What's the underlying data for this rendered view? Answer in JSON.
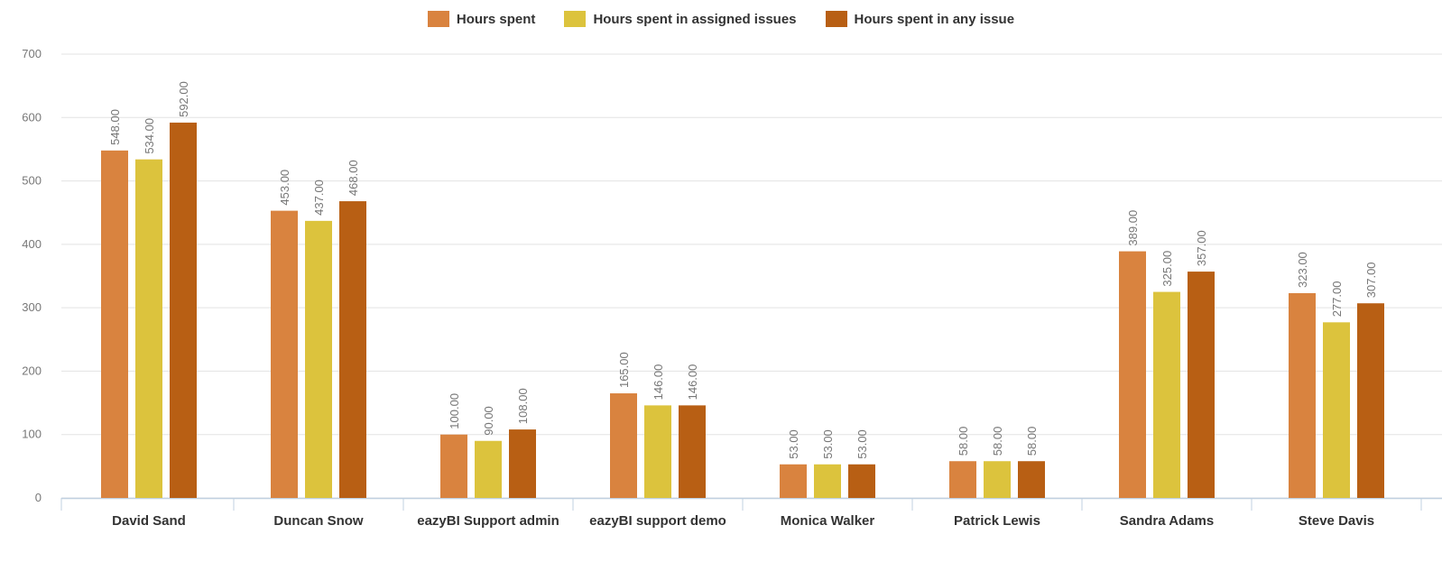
{
  "chart_data": {
    "type": "bar",
    "categories": [
      "David Sand",
      "Duncan Snow",
      "eazyBI Support admin",
      "eazyBI support demo",
      "Monica Walker",
      "Patrick Lewis",
      "Sandra Adams",
      "Steve Davis"
    ],
    "series": [
      {
        "name": "Hours spent",
        "color": "#d9833f",
        "values": [
          548,
          453,
          100,
          165,
          53,
          58,
          389,
          323
        ],
        "value_labels": [
          "548.00",
          "453.00",
          "100.00",
          "165.00",
          "53.00",
          "58.00",
          "389.00",
          "323.00"
        ]
      },
      {
        "name": "Hours spent in assigned issues",
        "color": "#dcc33d",
        "values": [
          534,
          437,
          90,
          146,
          53,
          58,
          325,
          277
        ],
        "value_labels": [
          "534.00",
          "437.00",
          "90.00",
          "146.00",
          "53.00",
          "58.00",
          "325.00",
          "277.00"
        ]
      },
      {
        "name": "Hours spent in any issue",
        "color": "#b85f14",
        "values": [
          592,
          468,
          108,
          146,
          53,
          58,
          357,
          307
        ],
        "value_labels": [
          "592.00",
          "468.00",
          "108.00",
          "146.00",
          "53.00",
          "58.00",
          "357.00",
          "307.00"
        ]
      }
    ],
    "ylim": [
      0,
      700
    ],
    "yticks": [
      0,
      100,
      200,
      300,
      400,
      500,
      600,
      700
    ],
    "grid": true,
    "legend": "top"
  }
}
